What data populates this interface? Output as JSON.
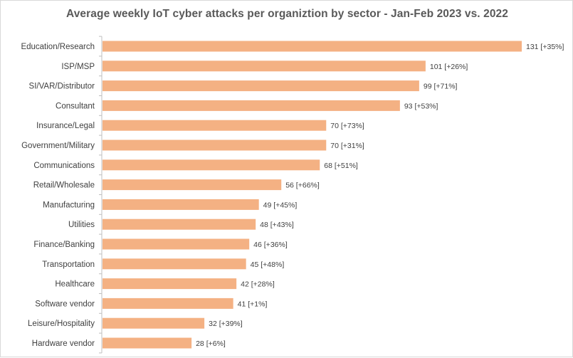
{
  "chart_data": {
    "type": "bar",
    "orientation": "horizontal",
    "title": "Average weekly IoT cyber attacks per organiztion by sector - Jan-Feb 2023 vs. 2022",
    "categories": [
      "Education/Research",
      "ISP/MSP",
      "SI/VAR/Distributor",
      "Consultant",
      "Insurance/Legal",
      "Government/Military",
      "Communications",
      "Retail/Wholesale",
      "Manufacturing",
      "Utilities",
      "Finance/Banking",
      "Transportation",
      "Healthcare",
      "Software vendor",
      "Leisure/Hospitality",
      "Hardware vendor"
    ],
    "values": [
      131,
      101,
      99,
      93,
      70,
      70,
      68,
      56,
      49,
      48,
      46,
      45,
      42,
      41,
      32,
      28
    ],
    "data_labels": [
      "131 [+35%]",
      "101 [+26%]",
      "99 [+71%]",
      "93 [+53%]",
      "70 [+73%]",
      "70 [+31%]",
      "68 [+51%]",
      "56 [+66%]",
      "49 [+45%]",
      "48 [+43%]",
      "46 [+36%]",
      "45 [+48%]",
      "42 [+28%]",
      "41 [+1%]",
      "32 [+39%]",
      "28 [+6%]"
    ],
    "xlabel": "",
    "ylabel": "",
    "xlim": [
      0,
      131
    ],
    "grid": false,
    "legend": "none",
    "bar_color": "#f4b183",
    "axis_color": "#bfbfbf"
  }
}
